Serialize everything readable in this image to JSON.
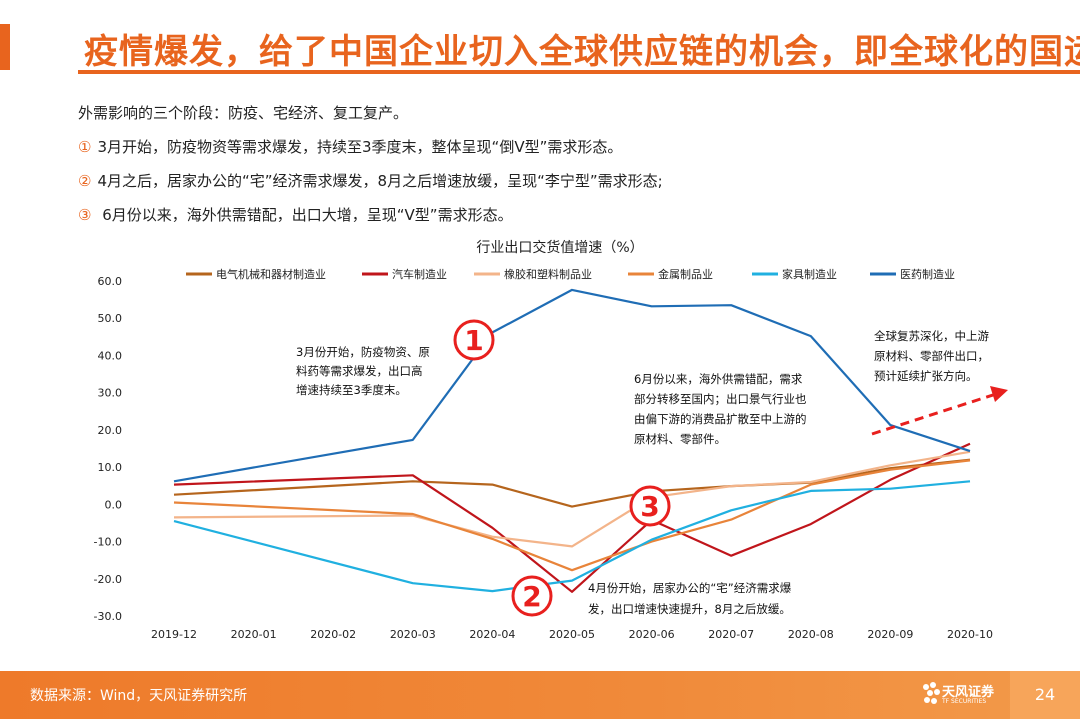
{
  "header": {
    "title": "疫情爆发，给了中国企业切入全球供应链的机会，即全球化的国运"
  },
  "intro": {
    "lead": "外需影响的三个阶段：防疫、宅经济、复工复产。",
    "items": [
      {
        "num": "①",
        "text": "3月开始，防疫物资等需求爆发，持续至3季度末，整体呈现“倒V型”需求形态。"
      },
      {
        "num": "②",
        "text": "4月之后，居家办公的“宅”经济需求爆发，8月之后增速放缓，呈现“李宁型”需求形态;"
      },
      {
        "num": "③",
        "text": " 6月份以来，海外供需错配，出口大增，呈现“V型”需求形态。"
      }
    ]
  },
  "chart_data": {
    "type": "line",
    "title": "行业出口交货值增速（%）",
    "xlabel": "",
    "ylabel": "",
    "ylim": [
      -30,
      60
    ],
    "yticks": [
      "60.0",
      "50.0",
      "40.0",
      "30.0",
      "20.0",
      "10.0",
      "0.0",
      "-10.0",
      "-20.0",
      "-30.0"
    ],
    "categories": [
      "2019-12",
      "2020-01",
      "2020-02",
      "2020-03",
      "2020-04",
      "2020-05",
      "2020-06",
      "2020-07",
      "2020-08",
      "2020-09",
      "2020-10"
    ],
    "legend_position": "top",
    "grid": false,
    "series": [
      {
        "name": "电气机械和器材制造业",
        "color": "#b5651d",
        "x": [
          0,
          3,
          4,
          5,
          6,
          7,
          8,
          9,
          10
        ],
        "values": [
          2.6,
          6.2,
          5.3,
          -0.6,
          3.5,
          4.9,
          5.8,
          9.7,
          12.0
        ]
      },
      {
        "name": "汽车制造业",
        "color": "#c0151b",
        "x": [
          0,
          3,
          4,
          5,
          6,
          7,
          8,
          9,
          10
        ],
        "values": [
          5.3,
          7.8,
          -6.3,
          -23.5,
          -4.2,
          -13.8,
          -5.3,
          6.6,
          16.3
        ]
      },
      {
        "name": "橡胶和塑料制品业",
        "color": "#f3b48a",
        "x": [
          0,
          3,
          4,
          5,
          6,
          7,
          8,
          9,
          10
        ],
        "values": [
          -3.5,
          -3.0,
          -8.7,
          -11.3,
          1.9,
          4.9,
          6.0,
          10.5,
          14.1
        ]
      },
      {
        "name": "金属制品业",
        "color": "#e8843a",
        "x": [
          0,
          3,
          4,
          5,
          6,
          7,
          8,
          9,
          10
        ],
        "values": [
          0.5,
          -2.6,
          -9.3,
          -17.7,
          -10.0,
          -4.1,
          5.3,
          9.3,
          11.8
        ]
      },
      {
        "name": "家具制造业",
        "color": "#20b0e0",
        "x": [
          0,
          3,
          4,
          5,
          6,
          7,
          8,
          9,
          10
        ],
        "values": [
          -4.5,
          -21.2,
          -23.3,
          -20.5,
          -9.5,
          -1.6,
          3.6,
          4.2,
          6.2
        ]
      },
      {
        "name": "医药制造业",
        "color": "#1f6db5",
        "x": [
          0,
          3,
          4,
          5,
          6,
          7,
          8,
          9,
          10
        ],
        "values": [
          6.2,
          17.3,
          46.2,
          57.6,
          53.2,
          53.5,
          45.2,
          21.3,
          14.3
        ]
      }
    ],
    "annotations": [
      {
        "id": "a1",
        "lines": [
          "3月份开始，防疫物资、原",
          "料药等需求爆发，出口高",
          "增速持续至3季度末。"
        ]
      },
      {
        "id": "a2",
        "lines": [
          "6月份以来，海外供需错配，需求",
          "部分转移至国内；出口景气行业也",
          "由偏下游的消费品扩散至中上游的",
          "原材料、零部件。"
        ]
      },
      {
        "id": "a3",
        "lines": [
          "全球复苏深化，中上游",
          "原材料、零部件出口，",
          "预计延续扩张方向。"
        ]
      },
      {
        "id": "a4",
        "lines": [
          "4月份开始，居家办公的“宅”经济需求爆",
          "发，出口增速快速提升，8月之后放缓。"
        ]
      }
    ],
    "markers": [
      "①",
      "②",
      "③"
    ]
  },
  "footer": {
    "source": "数据来源：Wind，天风证券研究所",
    "logo_text": "天风证券",
    "logo_sub": "TF SECURITIES",
    "page": "24"
  },
  "colors": {
    "accent": "#e8641e",
    "marker_red": "#e8201e"
  }
}
